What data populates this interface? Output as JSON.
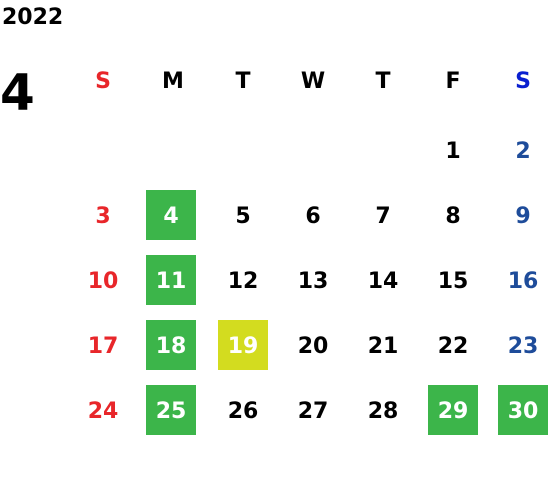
{
  "year": "2022",
  "month": "4",
  "weekdays": [
    {
      "label": "S",
      "color": "#e8262a"
    },
    {
      "label": "M",
      "color": "#000000"
    },
    {
      "label": "T",
      "color": "#000000"
    },
    {
      "label": "W",
      "color": "#000000"
    },
    {
      "label": "T",
      "color": "#000000"
    },
    {
      "label": "F",
      "color": "#000000"
    },
    {
      "label": "S",
      "color": "#0a1fd0"
    }
  ],
  "day_colors": [
    "#e8262a",
    "#000000",
    "#000000",
    "#000000",
    "#000000",
    "#000000",
    "#1e4c9a"
  ],
  "weeks": [
    [
      null,
      null,
      null,
      null,
      null,
      {
        "day": "1"
      },
      {
        "day": "2"
      }
    ],
    [
      {
        "day": "3"
      },
      {
        "day": "4",
        "fill": "#3cb54a"
      },
      {
        "day": "5"
      },
      {
        "day": "6"
      },
      {
        "day": "7"
      },
      {
        "day": "8"
      },
      {
        "day": "9"
      }
    ],
    [
      {
        "day": "10"
      },
      {
        "day": "11",
        "fill": "#3cb54a"
      },
      {
        "day": "12"
      },
      {
        "day": "13"
      },
      {
        "day": "14"
      },
      {
        "day": "15"
      },
      {
        "day": "16"
      }
    ],
    [
      {
        "day": "17"
      },
      {
        "day": "18",
        "fill": "#3cb54a"
      },
      {
        "day": "19",
        "fill": "#d3dc1f"
      },
      {
        "day": "20"
      },
      {
        "day": "21"
      },
      {
        "day": "22"
      },
      {
        "day": "23"
      }
    ],
    [
      {
        "day": "24"
      },
      {
        "day": "25",
        "fill": "#3cb54a"
      },
      {
        "day": "26"
      },
      {
        "day": "27"
      },
      {
        "day": "28"
      },
      {
        "day": "29",
        "fill": "#3cb54a"
      },
      {
        "day": "30",
        "fill": "#3cb54a"
      }
    ]
  ]
}
